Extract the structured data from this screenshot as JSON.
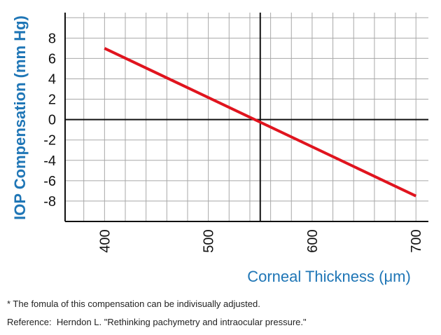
{
  "chart_data": {
    "type": "line",
    "xlabel": "Corneal Thickness (μm)",
    "ylabel": "IOP Compensation (mm Hg)",
    "xlim": [
      362,
      712
    ],
    "ylim": [
      -10,
      10.5
    ],
    "x_ticks": [
      400,
      500,
      600,
      700
    ],
    "y_ticks": [
      8,
      6,
      4,
      2,
      0,
      -2,
      -4,
      -6,
      -8
    ],
    "x_tick_labels": [
      "400",
      "500",
      "600",
      "700"
    ],
    "y_tick_labels": [
      "8",
      "6",
      "4",
      "2",
      "0",
      "-2",
      "-4",
      "-6",
      "-8"
    ],
    "x_minor_step": 20,
    "y_minor_step": 2,
    "reference_lines": {
      "x": 550,
      "y": 0
    },
    "grid": true,
    "series": [
      {
        "x": [
          400,
          700
        ],
        "y": [
          7.0,
          -7.5
        ],
        "color": "#e0141e"
      }
    ],
    "colors": {
      "axis_label": "#1f76b6",
      "grid": "#a8a8a8",
      "axes": "#111111"
    }
  },
  "footnote": "* The fomula of this compensation can be indivisually adjusted.",
  "reference": "Reference:  Herndon L. \"Rethinking pachymetry and intraocular pressure.\""
}
